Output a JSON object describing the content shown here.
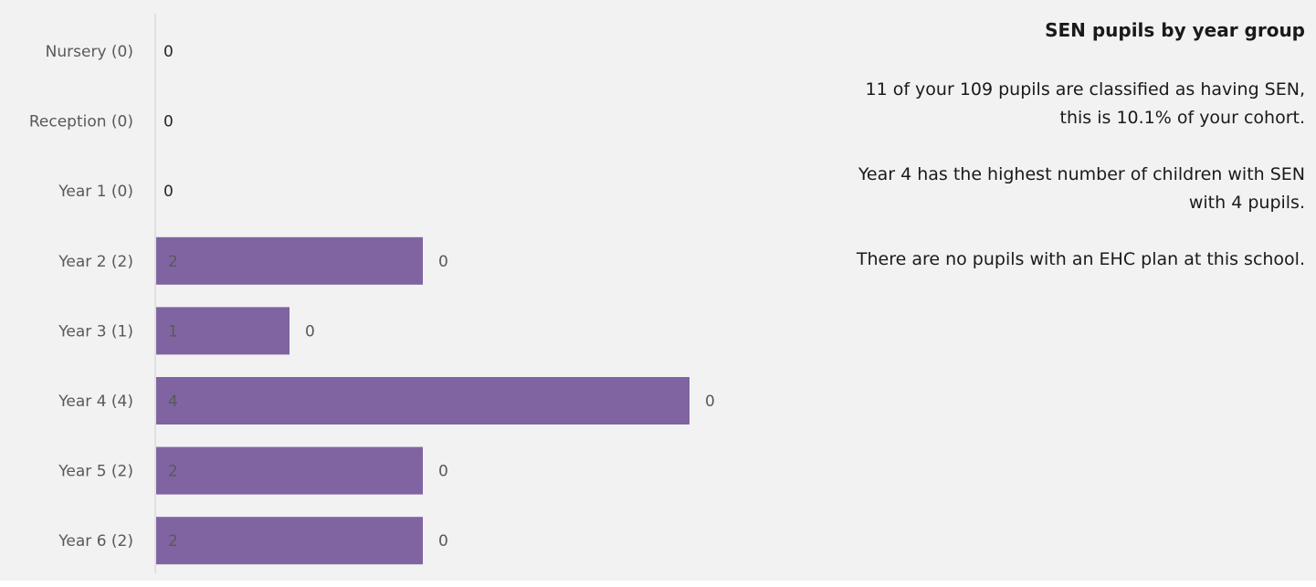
{
  "chart_data": {
    "type": "bar",
    "orientation": "horizontal",
    "categories": [
      "Nursery (0)",
      "Reception (0)",
      "Year 1 (0)",
      "Year 2 (2)",
      "Year 3 (1)",
      "Year 4 (4)",
      "Year 5 (2)",
      "Year 6 (2)"
    ],
    "series": [
      {
        "values": [
          0,
          0,
          0,
          2,
          1,
          4,
          2,
          2
        ],
        "color": "#8064a2"
      },
      {
        "values": [
          0,
          0,
          0,
          0,
          0,
          0,
          0,
          0
        ]
      }
    ],
    "xlim": [
      0,
      5
    ],
    "grid": false,
    "legend": "none"
  },
  "info": {
    "title": "SEN pupils by year group",
    "paragraphs": [
      "11 of your 109 pupils are classified as having SEN, this is 10.1% of your cohort.",
      "Year 4 has the highest number of children with SEN with 4 pupils.",
      "There are no pupils with an EHC plan at this school."
    ]
  },
  "colors": {
    "bar": "#8064a2",
    "axis": "#d9d9d9",
    "label_text": "#595959",
    "background": "#f2f2f2"
  }
}
